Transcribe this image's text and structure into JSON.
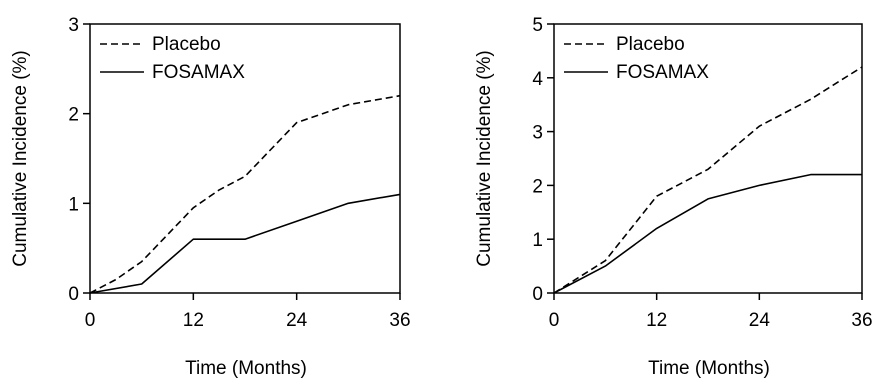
{
  "charts": {
    "items": [
      {
        "type": "line",
        "xlabel": "Time (Months)",
        "ylabel": "Cumulative Incidence (%)",
        "xlim": [
          0,
          36
        ],
        "ylim": [
          0,
          3
        ],
        "xticks": [
          "0",
          "12",
          "24",
          "36"
        ],
        "yticks": [
          "0",
          "1",
          "2",
          "3"
        ],
        "legend_position": "top-left",
        "grid": false,
        "series": [
          {
            "name": "Placebo",
            "line_style": "dashed",
            "x": [
              0,
              3,
              6,
              9,
              12,
              15,
              18,
              21,
              24,
              27,
              30,
              33,
              36
            ],
            "y": [
              0,
              0.15,
              0.35,
              0.65,
              0.95,
              1.15,
              1.3,
              1.6,
              1.9,
              2.0,
              2.1,
              2.15,
              2.2
            ]
          },
          {
            "name": "FOSAMAX",
            "line_style": "solid",
            "x": [
              0,
              6,
              12,
              18,
              24,
              30,
              36
            ],
            "y": [
              0,
              0.1,
              0.6,
              0.6,
              0.8,
              1.0,
              1.1
            ]
          }
        ]
      },
      {
        "type": "line",
        "xlabel": "Time (Months)",
        "ylabel": "Cumulative Incidence (%)",
        "xlim": [
          0,
          36
        ],
        "ylim": [
          0,
          5
        ],
        "xticks": [
          "0",
          "12",
          "24",
          "36"
        ],
        "yticks": [
          "0",
          "1",
          "2",
          "3",
          "4",
          "5"
        ],
        "legend_position": "top-left",
        "grid": false,
        "series": [
          {
            "name": "Placebo",
            "line_style": "dashed",
            "x": [
              0,
              6,
              12,
              18,
              24,
              30,
              36
            ],
            "y": [
              0,
              0.6,
              1.8,
              2.3,
              3.1,
              3.6,
              4.2
            ]
          },
          {
            "name": "FOSAMAX",
            "line_style": "solid",
            "x": [
              0,
              6,
              12,
              18,
              24,
              30,
              36
            ],
            "y": [
              0,
              0.5,
              1.2,
              1.75,
              2.0,
              2.2,
              2.2
            ]
          }
        ]
      }
    ]
  },
  "chart_data": [
    {
      "type": "line",
      "xlabel": "Time (Months)",
      "ylabel": "Cumulative Incidence (%)",
      "xlim": [
        0,
        36
      ],
      "ylim": [
        0,
        3
      ],
      "series": [
        {
          "name": "Placebo",
          "x": [
            0,
            3,
            6,
            9,
            12,
            15,
            18,
            21,
            24,
            27,
            30,
            33,
            36
          ],
          "y": [
            0,
            0.15,
            0.35,
            0.65,
            0.95,
            1.15,
            1.3,
            1.6,
            1.9,
            2.0,
            2.1,
            2.15,
            2.2
          ]
        },
        {
          "name": "FOSAMAX",
          "x": [
            0,
            6,
            12,
            18,
            24,
            30,
            36
          ],
          "y": [
            0,
            0.1,
            0.6,
            0.6,
            0.8,
            1.0,
            1.1
          ]
        }
      ]
    },
    {
      "type": "line",
      "xlabel": "Time (Months)",
      "ylabel": "Cumulative Incidence (%)",
      "xlim": [
        0,
        36
      ],
      "ylim": [
        0,
        5
      ],
      "series": [
        {
          "name": "Placebo",
          "x": [
            0,
            6,
            12,
            18,
            24,
            30,
            36
          ],
          "y": [
            0,
            0.6,
            1.8,
            2.3,
            3.1,
            3.6,
            4.2
          ]
        },
        {
          "name": "FOSAMAX",
          "x": [
            0,
            6,
            12,
            18,
            24,
            30,
            36
          ],
          "y": [
            0,
            0.5,
            1.2,
            1.75,
            2.0,
            2.2,
            2.2
          ]
        }
      ]
    }
  ]
}
